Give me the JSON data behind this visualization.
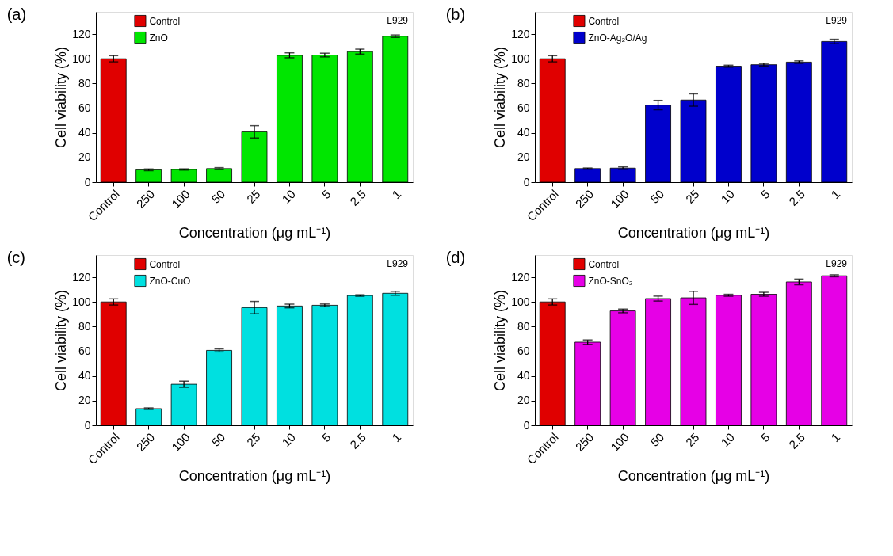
{
  "chart_data": [
    {
      "type": "bar",
      "title": "(a)",
      "xlabel": "Concentration (μg mL⁻¹)",
      "ylabel": "Cell viability (%)",
      "annotations": [
        "L929"
      ],
      "categories": [
        "Control",
        "250",
        "100",
        "50",
        "25",
        "10",
        "5",
        "2.5",
        "1"
      ],
      "ylim": [
        0,
        138
      ],
      "yticks": [
        0,
        20,
        40,
        60,
        80,
        100,
        120
      ],
      "legend": "top left",
      "series": [
        {
          "name": "Control",
          "color": "#e00000",
          "values": [
            100,
            null,
            null,
            null,
            null,
            null,
            null,
            null,
            null
          ],
          "errors": [
            2.5,
            null,
            null,
            null,
            null,
            null,
            null,
            null,
            null
          ]
        },
        {
          "name": "ZnO",
          "color": "#00e600",
          "values": [
            null,
            10,
            10.3,
            11,
            40.8,
            102.8,
            103,
            105.8,
            118.3
          ],
          "errors": [
            null,
            0.7,
            0.5,
            0.8,
            5,
            2,
            1.5,
            2,
            1
          ]
        }
      ]
    },
    {
      "type": "bar",
      "title": "(b)",
      "xlabel": "Concentration (μg mL⁻¹)",
      "ylabel": "Cell viability (%)",
      "annotations": [
        "L929"
      ],
      "categories": [
        "Control",
        "250",
        "100",
        "50",
        "25",
        "10",
        "5",
        "2.5",
        "1"
      ],
      "ylim": [
        0,
        138
      ],
      "yticks": [
        0,
        20,
        40,
        60,
        80,
        100,
        120
      ],
      "legend": "top left",
      "series": [
        {
          "name": "Control",
          "color": "#e00000",
          "values": [
            100,
            null,
            null,
            null,
            null,
            null,
            null,
            null,
            null
          ],
          "errors": [
            2.5,
            null,
            null,
            null,
            null,
            null,
            null,
            null,
            null
          ]
        },
        {
          "name": "ZnO-Ag₂O/Ag",
          "color": "#0000cc",
          "values": [
            null,
            11,
            11.4,
            62.5,
            66.6,
            94,
            95.2,
            97.3,
            114
          ],
          "errors": [
            null,
            0.5,
            1,
            3.8,
            5,
            0.8,
            1,
            1,
            1.8
          ]
        }
      ]
    },
    {
      "type": "bar",
      "title": "(c)",
      "xlabel": "Concentration (μg mL⁻¹)",
      "ylabel": "Cell viability (%)",
      "annotations": [
        "L929"
      ],
      "categories": [
        "Control",
        "250",
        "100",
        "50",
        "25",
        "10",
        "5",
        "2.5",
        "1"
      ],
      "ylim": [
        0,
        138
      ],
      "yticks": [
        0,
        20,
        40,
        60,
        80,
        100,
        120
      ],
      "legend": "top left",
      "series": [
        {
          "name": "Control",
          "color": "#e00000",
          "values": [
            100,
            null,
            null,
            null,
            null,
            null,
            null,
            null,
            null
          ],
          "errors": [
            2.5,
            null,
            null,
            null,
            null,
            null,
            null,
            null,
            null
          ]
        },
        {
          "name": "ZnO-CuO",
          "color": "#00e0e0",
          "values": [
            null,
            13.5,
            33.3,
            60.7,
            95.4,
            96.7,
            97.3,
            105.2,
            107
          ],
          "errors": [
            null,
            0.6,
            2.5,
            1.2,
            5,
            1.5,
            1,
            0.6,
            1.6
          ]
        }
      ]
    },
    {
      "type": "bar",
      "title": "(d)",
      "xlabel": "Concentration (μg mL⁻¹)",
      "ylabel": "Cell viability (%)",
      "annotations": [
        "L929"
      ],
      "categories": [
        "Control",
        "250",
        "100",
        "50",
        "25",
        "10",
        "5",
        "2.5",
        "1"
      ],
      "ylim": [
        0,
        138
      ],
      "yticks": [
        0,
        20,
        40,
        60,
        80,
        100,
        120
      ],
      "legend": "top left",
      "series": [
        {
          "name": "Control",
          "color": "#e00000",
          "values": [
            100,
            null,
            null,
            null,
            null,
            null,
            null,
            null,
            null
          ],
          "errors": [
            2.5,
            null,
            null,
            null,
            null,
            null,
            null,
            null,
            null
          ]
        },
        {
          "name": "ZnO-SnO₂",
          "color": "#e600e6",
          "values": [
            null,
            67.4,
            92.7,
            102.7,
            103.3,
            105.4,
            106.2,
            116.2,
            121.2
          ],
          "errors": [
            null,
            1.8,
            1.5,
            2,
            5.3,
            0.8,
            1.6,
            2.3,
            0.8
          ]
        }
      ]
    }
  ]
}
